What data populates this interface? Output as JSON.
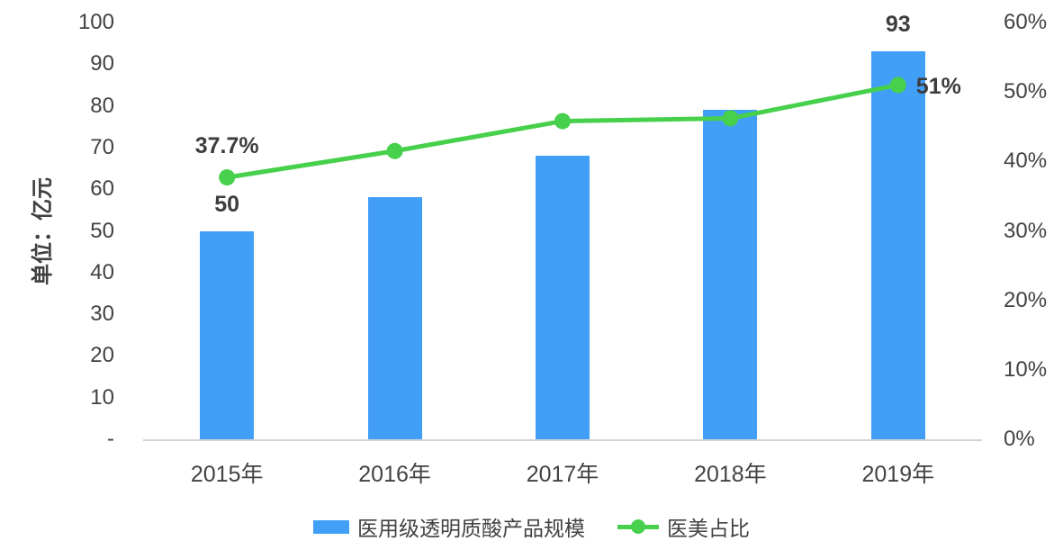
{
  "chart_data": {
    "type": "bar",
    "subtype": "bar-line-combo",
    "categories": [
      "2015年",
      "2016年",
      "2017年",
      "2018年",
      "2019年"
    ],
    "series": [
      {
        "name": "医用级透明质酸产品规模",
        "type": "bar",
        "axis": "left",
        "color": "#419ff8",
        "values": [
          50,
          58,
          68,
          79,
          93
        ],
        "data_labels": [
          "50",
          null,
          null,
          null,
          "93"
        ]
      },
      {
        "name": "医美占比",
        "type": "line",
        "axis": "right",
        "color": "#46d04b",
        "values": [
          37.7,
          41.5,
          45.8,
          46.2,
          51
        ],
        "data_labels": [
          "37.7%",
          null,
          null,
          null,
          "51%"
        ]
      }
    ],
    "left_axis": {
      "title": "单位：亿元",
      "min": 0,
      "max": 100,
      "tick_labels": [
        "100",
        "90",
        "80",
        "70",
        "60",
        "50",
        "40",
        "30",
        "20",
        "10",
        "-"
      ]
    },
    "right_axis": {
      "min": 0,
      "max": 60,
      "tick_labels": [
        "60%",
        "50%",
        "40%",
        "30%",
        "20%",
        "10%",
        "0%"
      ]
    },
    "grid": false,
    "legend_position": "bottom",
    "colors": {
      "bar": "#419ff8",
      "line": "#46d04b",
      "text": "#424242",
      "data_label_text": "#3d3d3d",
      "axis_line": "#d4d4d4",
      "background": "#ffffff"
    }
  }
}
